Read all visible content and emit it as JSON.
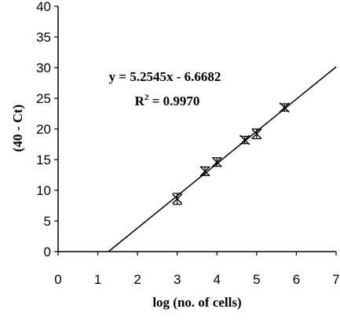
{
  "chart_data": {
    "type": "scatter",
    "xlabel": "log (no. of cells)",
    "ylabel": "(40 - Ct)",
    "xlim": [
      0,
      7
    ],
    "ylim": [
      0,
      40
    ],
    "xticks": [
      "0",
      "1",
      "2",
      "3",
      "4",
      "5",
      "6",
      "7"
    ],
    "yticks": [
      "0",
      "5",
      "10",
      "15",
      "20",
      "25",
      "30",
      "35",
      "40"
    ],
    "grid": false,
    "legend": "none",
    "points": [
      {
        "x": 3.0,
        "y": 8.6,
        "err": 0.9
      },
      {
        "x": 3.7,
        "y": 13.1,
        "err": 0.7
      },
      {
        "x": 4.0,
        "y": 14.6,
        "err": 0.7
      },
      {
        "x": 4.7,
        "y": 18.2,
        "err": 0.6
      },
      {
        "x": 5.0,
        "y": 19.2,
        "err": 0.8
      },
      {
        "x": 5.7,
        "y": 23.5,
        "err": 0.6
      }
    ],
    "fit": {
      "slope": 5.2545,
      "intercept": -6.6682
    },
    "annotations": {
      "equation": "y = 5.2545x - 6.6682",
      "r2_prefix": "R",
      "r2_sup": "2",
      "r2_value": " = 0.9970"
    }
  }
}
